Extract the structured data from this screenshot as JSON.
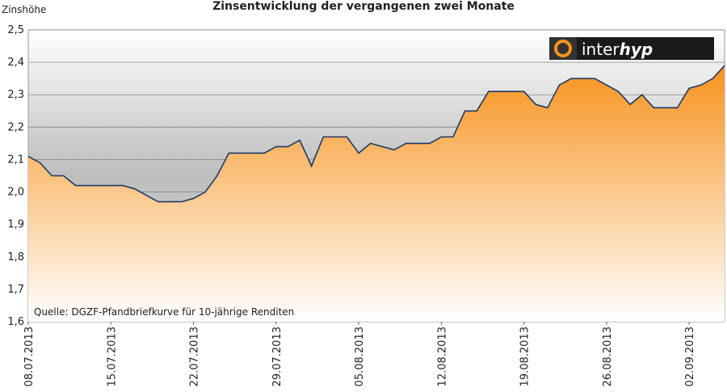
{
  "chart_data": {
    "type": "area",
    "title": "Zinsentwicklung der vergangenen zwei Monate",
    "y_axis_label": "Zinshöhe",
    "annotation": "Quelle: DGZF-Pfandbriefkurve für 10-jährige Renditen",
    "logo": {
      "light": "inter",
      "bold": "hyp"
    },
    "categories": [
      "08.07.2013",
      null,
      null,
      null,
      null,
      null,
      null,
      "15.07.2013",
      null,
      null,
      null,
      null,
      null,
      null,
      "22.07.2013",
      null,
      null,
      null,
      null,
      null,
      null,
      "29.07.2013",
      null,
      null,
      null,
      null,
      null,
      null,
      "05.08.2013",
      null,
      null,
      null,
      null,
      null,
      null,
      "12.08.2013",
      null,
      null,
      null,
      null,
      null,
      null,
      "19.08.2013",
      null,
      null,
      null,
      null,
      null,
      null,
      "26.08.2013",
      null,
      null,
      null,
      null,
      null,
      null,
      "02.09.2013",
      null,
      null,
      null
    ],
    "values": [
      2.11,
      2.09,
      2.05,
      2.05,
      2.02,
      2.02,
      2.02,
      2.02,
      2.02,
      2.01,
      1.99,
      1.97,
      1.97,
      1.97,
      1.98,
      2.0,
      2.05,
      2.12,
      2.12,
      2.12,
      2.12,
      2.14,
      2.14,
      2.16,
      2.08,
      2.17,
      2.17,
      2.17,
      2.12,
      2.15,
      2.14,
      2.13,
      2.15,
      2.15,
      2.15,
      2.17,
      2.17,
      2.25,
      2.25,
      2.31,
      2.31,
      2.31,
      2.31,
      2.27,
      2.26,
      2.33,
      2.35,
      2.35,
      2.35,
      2.33,
      2.31,
      2.27,
      2.3,
      2.26,
      2.26,
      2.26,
      2.32,
      2.33,
      2.35,
      2.39
    ],
    "color": "#f7931e",
    "line_color": "#1f3864",
    "ylim": [
      1.6,
      2.5
    ],
    "yticks": [
      {
        "value": 1.6,
        "label": "1,6"
      },
      {
        "value": 1.7,
        "label": "1,7"
      },
      {
        "value": 1.8,
        "label": "1,8"
      },
      {
        "value": 1.9,
        "label": "1,9"
      },
      {
        "value": 2.0,
        "label": "2,0"
      },
      {
        "value": 2.1,
        "label": "2,1"
      },
      {
        "value": 2.2,
        "label": "2,2"
      },
      {
        "value": 2.3,
        "label": "2,3"
      },
      {
        "value": 2.4,
        "label": "2,4"
      },
      {
        "value": 2.5,
        "label": "2,5"
      }
    ],
    "grid": true
  }
}
